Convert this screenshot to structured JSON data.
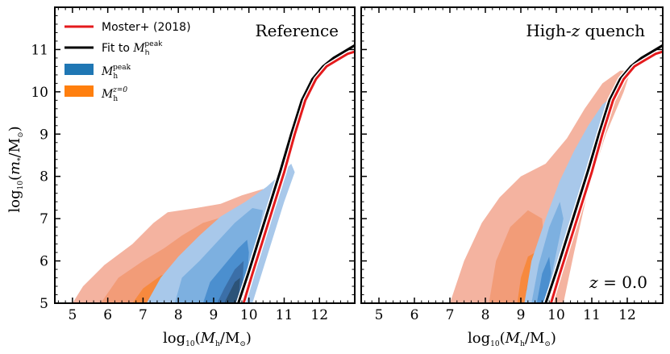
{
  "figure": {
    "ylabel": "log10(m*/M☉)",
    "xlabel": "log10(Mh/M☉)"
  },
  "legend": {
    "items": [
      {
        "label": "Moster+ (2018)",
        "kind": "line",
        "color": "#e41a1c"
      },
      {
        "label": "Fit to M_h^peak",
        "kind": "line",
        "color": "#000000"
      },
      {
        "label": "M_h^peak",
        "kind": "patch",
        "color": "#1f77b4"
      },
      {
        "label": "M_h^{z=0}",
        "kind": "patch",
        "color": "#ff7f0e"
      }
    ]
  },
  "chart_data": [
    {
      "type": "contour",
      "title": "Reference",
      "xlabel": "log10(M_h/M_sun)",
      "ylabel": "log10(m_*/M_sun)",
      "xlim": [
        4.5,
        13.0
      ],
      "ylim": [
        5.0,
        12.0
      ],
      "xticks": [
        5,
        6,
        7,
        8,
        9,
        10,
        11,
        12
      ],
      "yticks": [
        5,
        6,
        7,
        8,
        9,
        10,
        11
      ],
      "annotation": "",
      "series": [
        {
          "name": "Moster+ (2018)",
          "color": "#e41a1c",
          "x": [
            9.85,
            10.1,
            10.4,
            10.7,
            11.0,
            11.3,
            11.6,
            11.9,
            12.2,
            12.5,
            12.8,
            13.0
          ],
          "y": [
            5.0,
            5.7,
            6.5,
            7.3,
            8.1,
            9.0,
            9.8,
            10.3,
            10.6,
            10.75,
            10.9,
            10.95
          ]
        },
        {
          "name": "Fit to M_h^peak",
          "color": "#000000",
          "x": [
            9.7,
            10.0,
            10.3,
            10.6,
            10.9,
            11.2,
            11.5,
            11.8,
            12.1,
            12.4,
            12.7,
            13.0
          ],
          "y": [
            5.0,
            5.75,
            6.55,
            7.35,
            8.15,
            9.0,
            9.8,
            10.3,
            10.6,
            10.8,
            10.95,
            11.1
          ]
        }
      ],
      "contours": {
        "M_h^z=0_levels": [
          [
            [
              5.0,
              5.0
            ],
            [
              5.3,
              5.4
            ],
            [
              5.9,
              5.9
            ],
            [
              6.7,
              6.4
            ],
            [
              7.3,
              6.9
            ],
            [
              7.7,
              7.15
            ],
            [
              8.5,
              7.25
            ],
            [
              9.2,
              7.35
            ],
            [
              9.8,
              7.55
            ],
            [
              10.4,
              7.7
            ],
            [
              10.6,
              7.4
            ],
            [
              10.1,
              5.6
            ],
            [
              9.9,
              5.0
            ]
          ],
          [
            [
              5.8,
              5.0
            ],
            [
              6.3,
              5.6
            ],
            [
              7.0,
              6.0
            ],
            [
              7.6,
              6.3
            ],
            [
              8.1,
              6.6
            ],
            [
              8.7,
              6.9
            ],
            [
              9.3,
              7.05
            ],
            [
              9.9,
              7.3
            ],
            [
              10.2,
              7.15
            ],
            [
              9.9,
              5.9
            ],
            [
              9.8,
              5.0
            ]
          ],
          [
            [
              6.7,
              5.0
            ],
            [
              7.0,
              5.35
            ],
            [
              7.5,
              5.65
            ],
            [
              8.2,
              5.85
            ],
            [
              8.8,
              6.25
            ],
            [
              9.4,
              6.55
            ],
            [
              9.7,
              6.4
            ],
            [
              9.6,
              5.5
            ],
            [
              9.5,
              5.0
            ]
          ],
          [
            [
              7.3,
              5.0
            ],
            [
              7.5,
              5.25
            ],
            [
              8.2,
              5.4
            ],
            [
              8.7,
              5.75
            ],
            [
              9.1,
              5.9
            ],
            [
              9.3,
              5.4
            ],
            [
              9.2,
              5.0
            ]
          ]
        ],
        "M_h^peak_levels": [
          [
            [
              7.1,
              5.0
            ],
            [
              7.5,
              5.6
            ],
            [
              8.0,
              6.1
            ],
            [
              8.6,
              6.6
            ],
            [
              9.2,
              7.05
            ],
            [
              9.9,
              7.4
            ],
            [
              10.5,
              7.75
            ],
            [
              10.9,
              8.05
            ],
            [
              11.2,
              8.3
            ],
            [
              11.3,
              8.1
            ],
            [
              11.0,
              7.4
            ],
            [
              10.4,
              5.8
            ],
            [
              10.1,
              5.0
            ]
          ],
          [
            [
              7.9,
              5.0
            ],
            [
              8.1,
              5.6
            ],
            [
              8.6,
              6.0
            ],
            [
              9.1,
              6.45
            ],
            [
              9.6,
              6.9
            ],
            [
              10.1,
              7.25
            ],
            [
              10.4,
              7.2
            ],
            [
              10.1,
              5.9
            ],
            [
              9.95,
              5.0
            ]
          ],
          [
            [
              8.7,
              5.0
            ],
            [
              8.9,
              5.5
            ],
            [
              9.3,
              5.9
            ],
            [
              9.7,
              6.3
            ],
            [
              9.95,
              6.5
            ],
            [
              10.0,
              6.2
            ],
            [
              9.9,
              5.0
            ]
          ],
          [
            [
              9.1,
              5.0
            ],
            [
              9.3,
              5.35
            ],
            [
              9.6,
              5.8
            ],
            [
              9.85,
              6.0
            ],
            [
              9.8,
              5.0
            ]
          ],
          [
            [
              9.3,
              5.0
            ],
            [
              9.6,
              5.5
            ],
            [
              9.75,
              5.6
            ],
            [
              9.7,
              5.0
            ]
          ]
        ]
      }
    },
    {
      "type": "contour",
      "title": "High-z quench",
      "xlabel": "log10(M_h/M_sun)",
      "ylabel": "",
      "xlim": [
        4.5,
        13.0
      ],
      "ylim": [
        5.0,
        12.0
      ],
      "xticks": [
        5,
        6,
        7,
        8,
        9,
        10,
        11,
        12
      ],
      "yticks": [
        5,
        6,
        7,
        8,
        9,
        10,
        11
      ],
      "annotation": "z = 0.0",
      "series": [
        {
          "name": "Moster+ (2018)",
          "color": "#e41a1c",
          "x": [
            9.85,
            10.1,
            10.4,
            10.7,
            11.0,
            11.3,
            11.6,
            11.9,
            12.2,
            12.5,
            12.8,
            13.0
          ],
          "y": [
            5.0,
            5.7,
            6.5,
            7.3,
            8.1,
            9.0,
            9.8,
            10.3,
            10.6,
            10.75,
            10.9,
            10.95
          ]
        },
        {
          "name": "Fit to M_h^peak",
          "color": "#000000",
          "x": [
            9.7,
            10.0,
            10.3,
            10.6,
            10.9,
            11.2,
            11.5,
            11.8,
            12.1,
            12.4,
            12.7,
            13.0
          ],
          "y": [
            5.0,
            5.75,
            6.55,
            7.35,
            8.15,
            9.0,
            9.8,
            10.3,
            10.6,
            10.8,
            10.95,
            11.1
          ]
        }
      ],
      "contours": {
        "M_h^z=0_levels": [
          [
            [
              7.0,
              5.0
            ],
            [
              7.4,
              6.0
            ],
            [
              7.9,
              6.9
            ],
            [
              8.4,
              7.5
            ],
            [
              9.0,
              8.0
            ],
            [
              9.7,
              8.3
            ],
            [
              10.3,
              8.9
            ],
            [
              10.8,
              9.6
            ],
            [
              11.3,
              10.2
            ],
            [
              11.8,
              10.5
            ],
            [
              12.1,
              10.5
            ],
            [
              11.9,
              10.0
            ],
            [
              11.4,
              9.0
            ],
            [
              10.9,
              7.7
            ],
            [
              10.5,
              6.2
            ],
            [
              10.2,
              5.0
            ]
          ],
          [
            [
              8.1,
              5.0
            ],
            [
              8.3,
              6.0
            ],
            [
              8.7,
              6.8
            ],
            [
              9.2,
              7.2
            ],
            [
              9.6,
              7.0
            ],
            [
              9.7,
              6.0
            ],
            [
              9.6,
              5.0
            ]
          ],
          [
            [
              8.9,
              5.0
            ],
            [
              9.0,
              5.6
            ],
            [
              9.2,
              6.1
            ],
            [
              9.4,
              6.2
            ],
            [
              9.45,
              5.5
            ],
            [
              9.35,
              5.0
            ]
          ],
          [
            [
              9.15,
              5.3
            ],
            [
              9.3,
              5.9
            ],
            [
              9.4,
              5.85
            ],
            [
              9.35,
              5.3
            ]
          ]
        ],
        "M_h^peak_levels": [
          [
            [
              9.1,
              5.0
            ],
            [
              9.3,
              6.0
            ],
            [
              9.7,
              7.0
            ],
            [
              10.1,
              7.9
            ],
            [
              10.5,
              8.6
            ],
            [
              10.9,
              9.2
            ],
            [
              11.3,
              9.7
            ],
            [
              11.6,
              9.9
            ],
            [
              11.3,
              9.2
            ],
            [
              10.9,
              8.3
            ],
            [
              10.4,
              7.0
            ],
            [
              10.0,
              5.6
            ],
            [
              9.85,
              5.0
            ]
          ],
          [
            [
              9.3,
              5.0
            ],
            [
              9.5,
              5.9
            ],
            [
              9.8,
              6.8
            ],
            [
              10.1,
              7.4
            ],
            [
              10.2,
              7.0
            ],
            [
              9.9,
              5.8
            ],
            [
              9.75,
              5.0
            ]
          ],
          [
            [
              9.45,
              5.0
            ],
            [
              9.6,
              5.7
            ],
            [
              9.8,
              6.1
            ],
            [
              9.85,
              5.7
            ],
            [
              9.7,
              5.0
            ]
          ]
        ]
      }
    }
  ]
}
